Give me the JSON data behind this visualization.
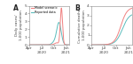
{
  "panel_A_label": "A",
  "panel_B_label": "B",
  "ylabel_A": "Daily cases/\n1,000 population",
  "ylabel_B": "Cumulative deaths/\n1,000 population",
  "x_tick_labels_top": [
    "Apr",
    "Jul",
    "Oct",
    "Jan"
  ],
  "x_tick_years": [
    "",
    "2020",
    "",
    "2021"
  ],
  "legend_model": "Model scenario",
  "legend_reported": "Reported data",
  "color_model": "#f08080",
  "color_reported": "#5bbcbc",
  "ylim_A": [
    0,
    5
  ],
  "ylim_B": [
    0,
    4
  ],
  "yticks_A": [
    0,
    1,
    2,
    3,
    4,
    5
  ],
  "yticks_B": [
    0,
    1,
    2,
    3,
    4
  ],
  "background_color": "#ffffff",
  "line_width": 0.7
}
